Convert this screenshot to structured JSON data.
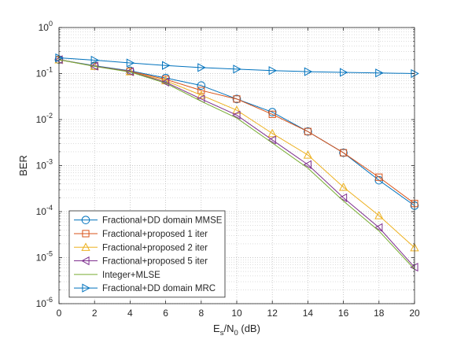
{
  "chart_data": {
    "type": "line",
    "xlabel": {
      "main": "E",
      "sub1": "s",
      "mid": "/N",
      "sub2": "0",
      "tail": " (dB)"
    },
    "ylabel": "BER",
    "yscale": "log",
    "xlim": [
      0,
      20
    ],
    "ylim": [
      1e-06,
      1
    ],
    "x_ticks": [
      0,
      2,
      4,
      6,
      8,
      10,
      12,
      14,
      16,
      18,
      20
    ],
    "x_tick_labels": [
      "0",
      "2",
      "4",
      "6",
      "8",
      "10",
      "12",
      "14",
      "16",
      "18",
      "20"
    ],
    "y_ticks": [
      {
        "value": 1,
        "base": "10",
        "exp": "0"
      },
      {
        "value": 0.1,
        "base": "10",
        "exp": "-1"
      },
      {
        "value": 0.01,
        "base": "10",
        "exp": "-2"
      },
      {
        "value": 0.001,
        "base": "10",
        "exp": "-3"
      },
      {
        "value": 0.0001,
        "base": "10",
        "exp": "-4"
      },
      {
        "value": 1e-05,
        "base": "10",
        "exp": "-5"
      },
      {
        "value": 1e-06,
        "base": "10",
        "exp": "-6"
      }
    ],
    "grid": true,
    "legend_position": "bottom-left",
    "series": [
      {
        "name": "Fractional+DD domain MMSE",
        "color": "#0072BD",
        "marker": "circle",
        "x": [
          0,
          2,
          4,
          6,
          8,
          10,
          12,
          14,
          16,
          18,
          20
        ],
        "y": [
          0.2,
          0.148,
          0.115,
          0.08,
          0.055,
          0.028,
          0.0145,
          0.0055,
          0.0019,
          0.00048,
          0.000135
        ]
      },
      {
        "name": "Fractional+proposed 1 iter",
        "color": "#D95319",
        "marker": "square",
        "x": [
          0,
          2,
          4,
          6,
          8,
          10,
          12,
          14,
          16,
          18,
          20
        ],
        "y": [
          0.2,
          0.145,
          0.112,
          0.075,
          0.043,
          0.028,
          0.013,
          0.0055,
          0.0019,
          0.00056,
          0.00015
        ]
      },
      {
        "name": "Fractional+proposed 2 iter",
        "color": "#EDB120",
        "marker": "triangle-up",
        "x": [
          0,
          2,
          4,
          6,
          8,
          10,
          12,
          14,
          16,
          18,
          20
        ],
        "y": [
          0.2,
          0.145,
          0.11,
          0.07,
          0.034,
          0.016,
          0.005,
          0.0017,
          0.00034,
          8.2e-05,
          1.65e-05
        ]
      },
      {
        "name": "Fractional+proposed 5 iter",
        "color": "#7E2F8E",
        "marker": "triangle-left",
        "x": [
          0,
          2,
          4,
          6,
          8,
          10,
          12,
          14,
          16,
          18,
          20
        ],
        "y": [
          0.2,
          0.145,
          0.11,
          0.065,
          0.028,
          0.0125,
          0.0036,
          0.00105,
          0.0002,
          4.5e-05,
          6.2e-06
        ]
      },
      {
        "name": "Integer+MLSE",
        "color": "#77AC30",
        "marker": "none",
        "x": [
          0,
          2,
          4,
          6,
          8,
          10,
          12,
          14,
          16,
          18,
          20
        ],
        "y": [
          0.2,
          0.143,
          0.108,
          0.062,
          0.025,
          0.0108,
          0.0031,
          0.00088,
          0.00017,
          3.8e-05,
          5.6e-06
        ]
      },
      {
        "name": "Fractional+DD domain MRC",
        "color": "#0072BD",
        "marker": "triangle-right",
        "x": [
          0,
          2,
          4,
          6,
          8,
          10,
          12,
          14,
          16,
          18,
          20
        ],
        "y": [
          0.22,
          0.195,
          0.17,
          0.15,
          0.135,
          0.125,
          0.116,
          0.11,
          0.106,
          0.103,
          0.1
        ]
      }
    ]
  }
}
